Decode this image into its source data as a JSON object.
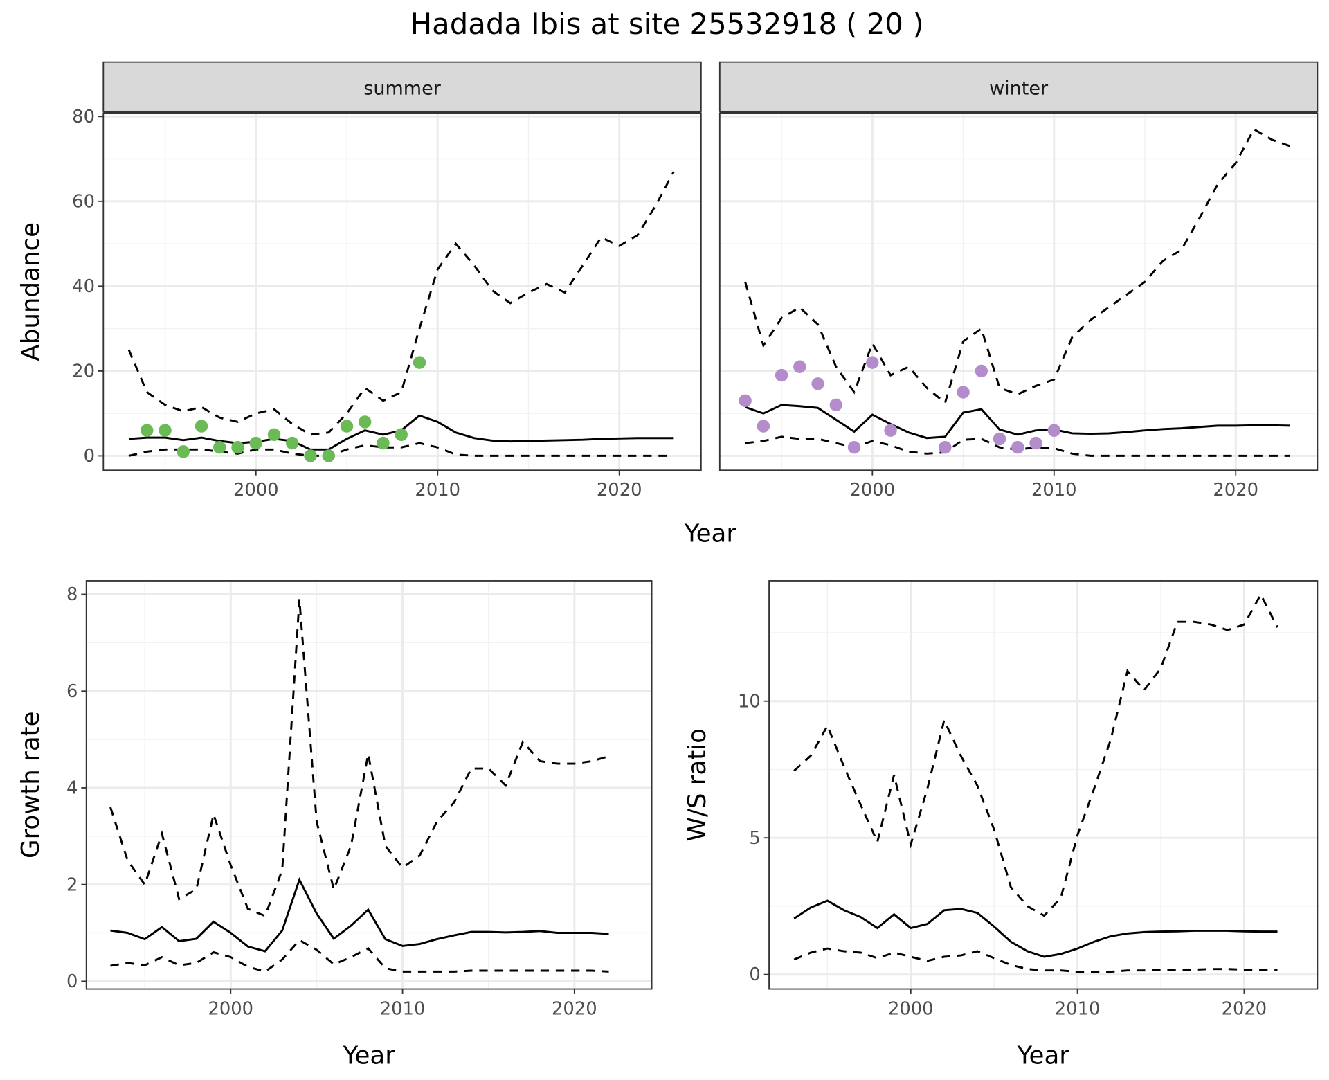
{
  "chart_data": {
    "title": "Hadada Ibis at site 25532918 ( 20 )",
    "colors": {
      "summer": "#6aba56",
      "winter": "#b48ccb",
      "line": "#000000",
      "strip": "#d9d9d9"
    },
    "years": [
      1993,
      1994,
      1995,
      1996,
      1997,
      1998,
      1999,
      2000,
      2001,
      2002,
      2003,
      2004,
      2005,
      2006,
      2007,
      2008,
      2009,
      2010,
      2011,
      2012,
      2013,
      2014,
      2015,
      2016,
      2017,
      2018,
      2019,
      2020,
      2021,
      2022,
      2023
    ],
    "abundance": {
      "type": "line",
      "ylabel": "Abundance",
      "xlabel": "Year",
      "ylim": [
        -3.4,
        80.8
      ],
      "xlim": [
        1991.6,
        2024.5
      ],
      "yticks": [
        0,
        20,
        40,
        60,
        80
      ],
      "xticks": [
        2000,
        2010,
        2020
      ],
      "facets": [
        {
          "label": "summer",
          "points": {
            "x": [
              1994,
              1995,
              1996,
              1997,
              1998,
              1999,
              2000,
              2001,
              2002,
              2003,
              2004,
              2005,
              2006,
              2007,
              2008,
              2009
            ],
            "y": [
              6,
              6,
              1,
              7,
              2,
              2,
              3,
              5,
              3,
              0,
              0,
              7,
              8,
              3,
              5,
              22
            ]
          },
          "mean": [
            4,
            4.3,
            4.3,
            3.7,
            4.3,
            3.5,
            3,
            3.3,
            4,
            3.5,
            1.5,
            1.5,
            4,
            6,
            5,
            6,
            9.5,
            8,
            5.5,
            4.2,
            3.6,
            3.4,
            3.5,
            3.6,
            3.7,
            3.8,
            4,
            4.1,
            4.2,
            4.2,
            4.2
          ],
          "upper": [
            25,
            15,
            12,
            10.5,
            11.5,
            9,
            8,
            10,
            11,
            7.5,
            5,
            5.5,
            10,
            16,
            13,
            15,
            30,
            44,
            50,
            45,
            39,
            36,
            38.5,
            40.5,
            38.5,
            45,
            51.5,
            49.5,
            52,
            59,
            67
          ],
          "lower": [
            0,
            1,
            1.5,
            1.5,
            1.5,
            1,
            0.5,
            1.5,
            1.5,
            0.5,
            0,
            0,
            1.5,
            2.5,
            2,
            2,
            3,
            2,
            0.3,
            0,
            0,
            0,
            0,
            0,
            0,
            0,
            0,
            0,
            0,
            0,
            0
          ]
        },
        {
          "label": "winter",
          "points": {
            "x": [
              1993,
              1994,
              1995,
              1996,
              1997,
              1998,
              1999,
              2000,
              2001,
              2004,
              2005,
              2006,
              2007,
              2008,
              2009,
              2010
            ],
            "y": [
              13,
              7,
              19,
              21,
              17,
              12,
              2,
              22,
              6,
              2,
              15,
              20,
              4,
              2,
              3,
              6
            ]
          },
          "mean": [
            11.5,
            10,
            12,
            11.7,
            11.3,
            8.5,
            5.7,
            9.7,
            7.5,
            5.5,
            4.2,
            4.5,
            10.2,
            11,
            6.2,
            5,
            6,
            6.2,
            5.3,
            5.2,
            5.3,
            5.6,
            6,
            6.3,
            6.5,
            6.8,
            7.1,
            7.1,
            7.2,
            7.2,
            7.1
          ],
          "upper": [
            41,
            26,
            32.5,
            35,
            31,
            21,
            15,
            26.5,
            19,
            21,
            16,
            12.5,
            27,
            30,
            16,
            14.5,
            16.5,
            18,
            28,
            32,
            35,
            38,
            41,
            46,
            48.5,
            56,
            64,
            69,
            77,
            74.5,
            73
          ],
          "lower": [
            3,
            3.5,
            4.5,
            4,
            4,
            3,
            2,
            3.5,
            2.5,
            1,
            0.5,
            0.8,
            3.8,
            4,
            2,
            1.5,
            2,
            1.8,
            0.5,
            0,
            0,
            0,
            0,
            0,
            0,
            0,
            0,
            0,
            0,
            0,
            0
          ]
        }
      ]
    },
    "growth": {
      "type": "line",
      "ylabel": "Growth rate",
      "xlabel": "Year",
      "ylim": [
        -0.16,
        8.28
      ],
      "xlim": [
        1991.6,
        2024.5
      ],
      "yticks": [
        0,
        2,
        4,
        6,
        8
      ],
      "xticks": [
        2000,
        2010,
        2020
      ],
      "mean": [
        1.05,
        1.0,
        0.87,
        1.12,
        0.83,
        0.88,
        1.23,
        1.0,
        0.72,
        0.62,
        1.05,
        2.1,
        1.4,
        0.88,
        1.15,
        1.48,
        0.87,
        0.73,
        0.77,
        0.87,
        0.95,
        1.02,
        1.02,
        1.01,
        1.02,
        1.04,
        1.0,
        1.0,
        1.0,
        0.98
      ],
      "upper": [
        3.6,
        2.5,
        2.0,
        3.05,
        1.7,
        1.9,
        3.45,
        2.4,
        1.5,
        1.35,
        2.3,
        7.9,
        3.3,
        1.9,
        2.8,
        4.7,
        2.8,
        2.35,
        2.6,
        3.3,
        3.7,
        4.4,
        4.4,
        4.05,
        4.95,
        4.55,
        4.5,
        4.5,
        4.55,
        4.65
      ],
      "lower": [
        0.32,
        0.38,
        0.33,
        0.5,
        0.33,
        0.38,
        0.6,
        0.5,
        0.3,
        0.2,
        0.45,
        0.85,
        0.65,
        0.35,
        0.5,
        0.68,
        0.27,
        0.2,
        0.2,
        0.2,
        0.2,
        0.22,
        0.22,
        0.22,
        0.22,
        0.22,
        0.22,
        0.22,
        0.22,
        0.2
      ]
    },
    "ws_ratio": {
      "type": "line",
      "ylabel": "W/S ratio",
      "xlabel": "Year",
      "ylim": [
        -0.53,
        14.4
      ],
      "xlim": [
        1991.5,
        2024.4
      ],
      "yticks": [
        0,
        5,
        10
      ],
      "xticks": [
        2000,
        2010,
        2020
      ],
      "mean": [
        2.05,
        2.45,
        2.7,
        2.35,
        2.1,
        1.7,
        2.2,
        1.7,
        1.85,
        2.35,
        2.4,
        2.25,
        1.75,
        1.2,
        0.85,
        0.65,
        0.75,
        0.95,
        1.2,
        1.4,
        1.5,
        1.55,
        1.57,
        1.58,
        1.6,
        1.6,
        1.6,
        1.58,
        1.57,
        1.57
      ],
      "upper": [
        7.45,
        8.0,
        9.1,
        7.6,
        6.2,
        4.85,
        7.3,
        4.75,
        6.8,
        9.3,
        8.0,
        6.9,
        5.3,
        3.2,
        2.5,
        2.15,
        2.8,
        5.1,
        6.8,
        8.6,
        11.1,
        10.4,
        11.2,
        12.9,
        12.9,
        12.8,
        12.6,
        12.8,
        13.9,
        12.7
      ],
      "lower": [
        0.55,
        0.8,
        0.95,
        0.85,
        0.8,
        0.6,
        0.8,
        0.65,
        0.5,
        0.65,
        0.7,
        0.85,
        0.6,
        0.35,
        0.2,
        0.15,
        0.15,
        0.1,
        0.1,
        0.1,
        0.15,
        0.15,
        0.18,
        0.18,
        0.18,
        0.2,
        0.2,
        0.18,
        0.18,
        0.18
      ]
    }
  }
}
